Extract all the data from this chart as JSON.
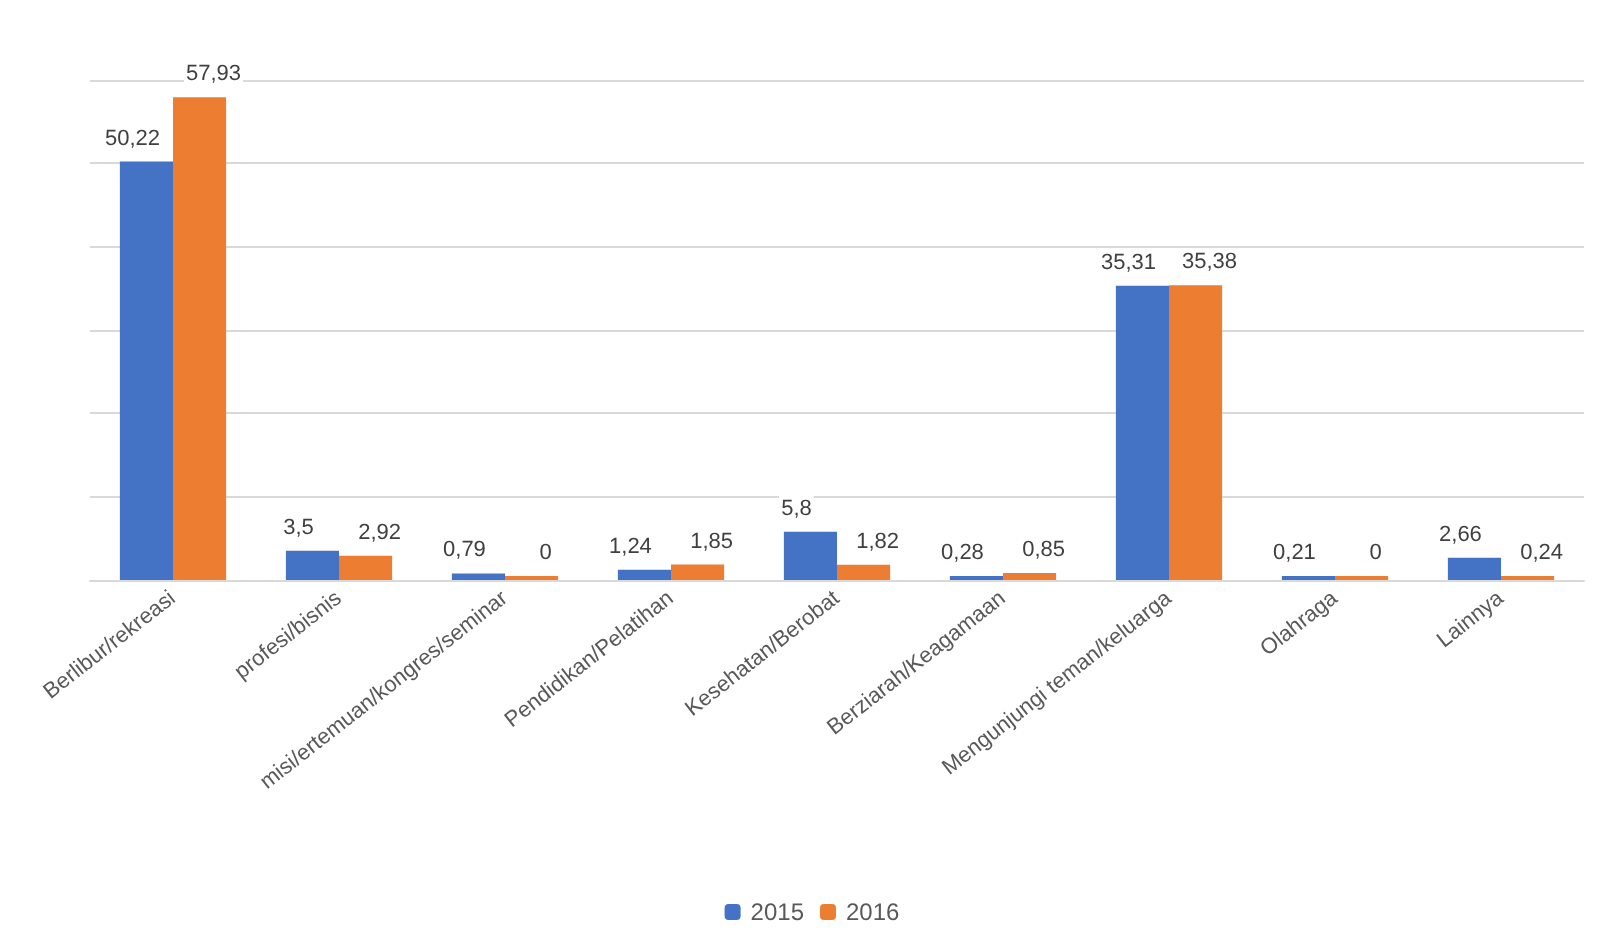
{
  "chart_data": {
    "type": "bar",
    "categories": [
      "Berlibur/rekreasi",
      "profesi/bisnis",
      "misi/ertemuan/kongres/seminar",
      "Pendidikan/Pelatihan",
      "Kesehatan/Berobat",
      "Berziarah/Keagamaan",
      "Mengunjungi teman/keluarga",
      "Olahraga",
      "Lainnya"
    ],
    "series": [
      {
        "name": "2015",
        "color": "#4472c4",
        "values": [
          50.22,
          3.5,
          0.79,
          1.24,
          5.8,
          0.28,
          35.31,
          0.21,
          2.66
        ],
        "value_labels": [
          "50,22",
          "3,5",
          "0,79",
          "1,24",
          "5,8",
          "0,28",
          "35,31",
          "0,21",
          "2,66"
        ]
      },
      {
        "name": "2016",
        "color": "#ed7d31",
        "values": [
          57.93,
          2.92,
          0,
          1.85,
          1.82,
          0.85,
          35.38,
          0,
          0.24
        ],
        "value_labels": [
          "57,93",
          "2,92",
          "0",
          "1,85",
          "1,82",
          "0,85",
          "35,38",
          "0",
          "0,24"
        ]
      }
    ],
    "ylim": [
      0,
      60
    ],
    "yticks": [
      {
        "value": 0,
        "label": null
      },
      {
        "value": 10,
        "label": null
      },
      {
        "value": 20,
        "label": null
      },
      {
        "value": 30,
        "label": null
      },
      {
        "value": 40,
        "label": null
      },
      {
        "value": 50,
        "label": null
      },
      {
        "value": 60,
        "label": null
      }
    ],
    "tick_labels": "x",
    "grid": "y",
    "legend": "bottom"
  }
}
